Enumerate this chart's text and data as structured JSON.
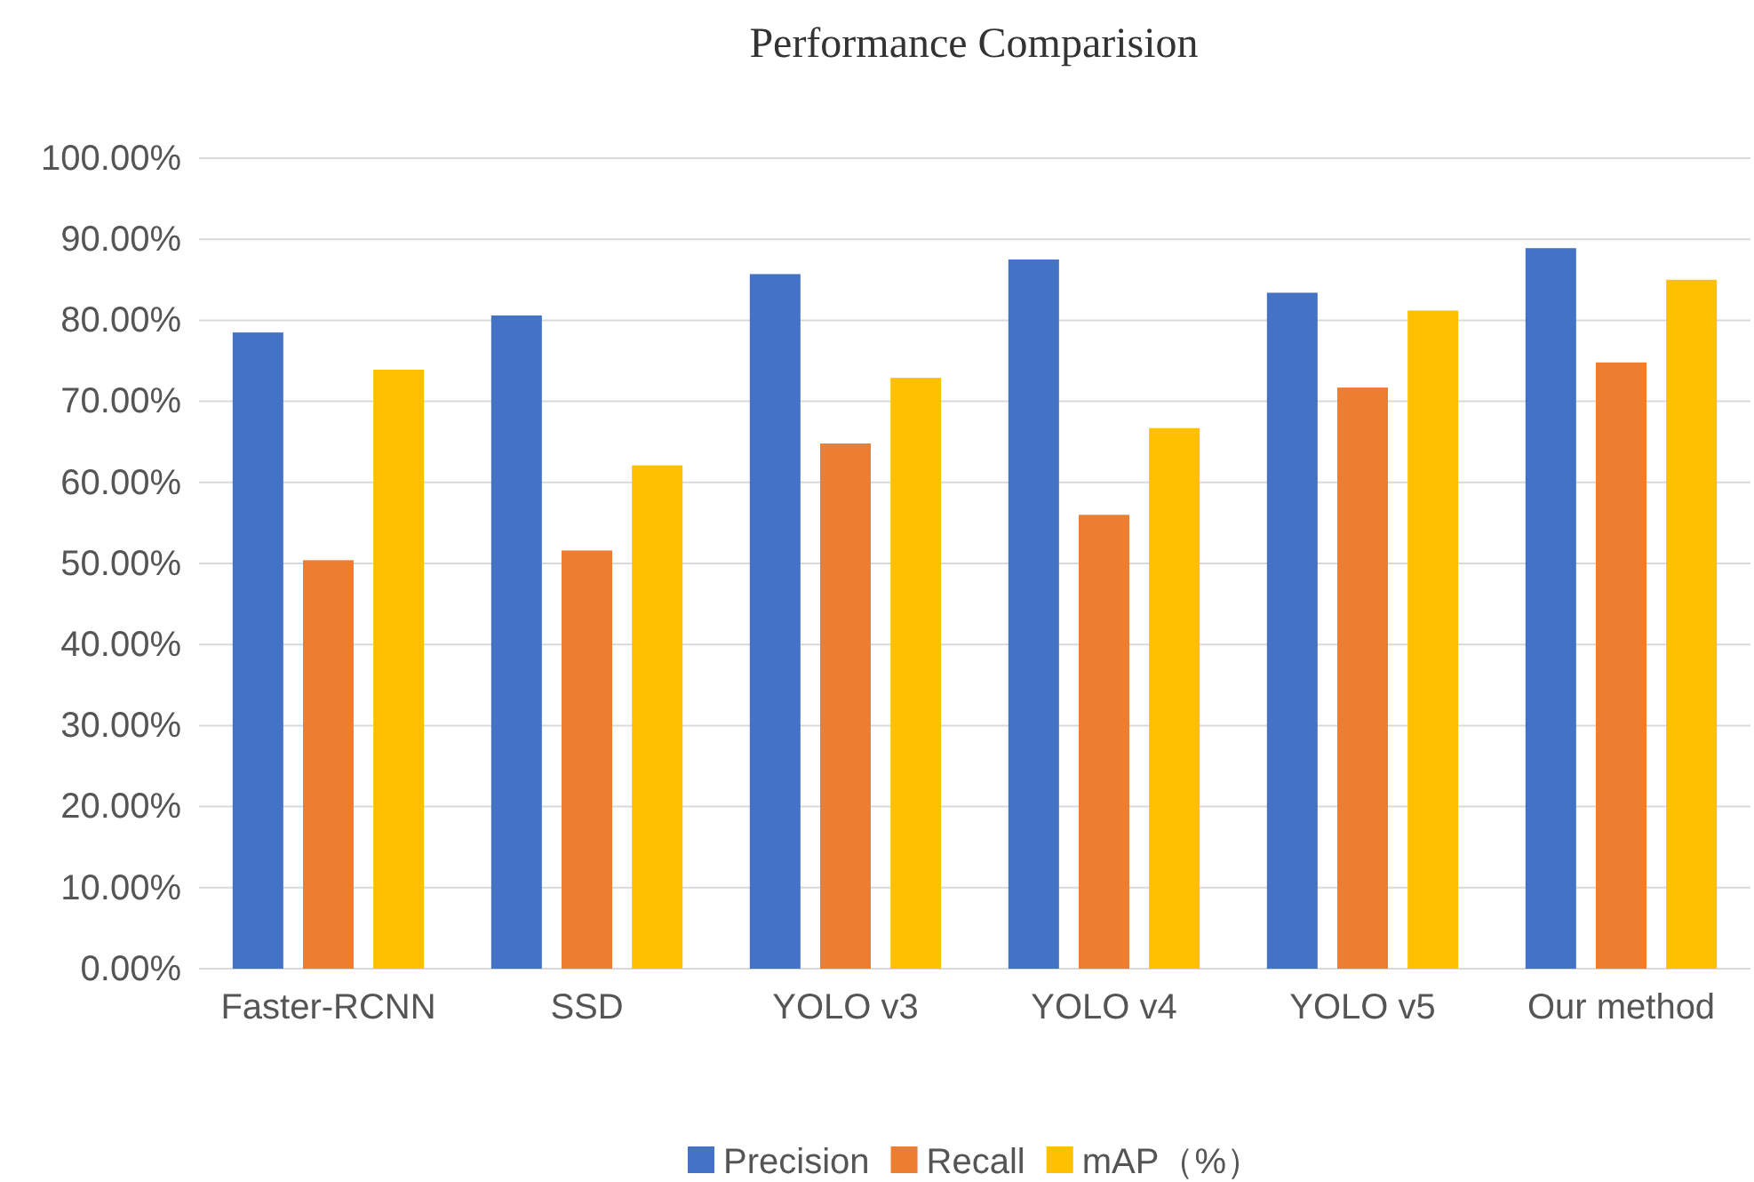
{
  "chart_data": {
    "type": "bar",
    "title": "Performance Comparision",
    "categories": [
      "Faster-RCNN",
      "SSD",
      "YOLO v3",
      "YOLO v4",
      "YOLO v5",
      "Our method"
    ],
    "series": [
      {
        "name": "Precision",
        "color": "#4472c4",
        "values": [
          78.5,
          80.6,
          85.7,
          87.5,
          83.4,
          88.9
        ]
      },
      {
        "name": "Recall",
        "color": "#ed7d31",
        "values": [
          50.4,
          51.6,
          64.8,
          56.0,
          71.7,
          74.8
        ]
      },
      {
        "name": "mAP（%）",
        "color": "#ffc000",
        "values": [
          73.9,
          62.1,
          72.9,
          66.7,
          81.2,
          85.0
        ]
      }
    ],
    "ylim": [
      0,
      100
    ],
    "yticks": [
      {
        "value": 0,
        "label": "0.00%"
      },
      {
        "value": 10,
        "label": "10.00%"
      },
      {
        "value": 20,
        "label": "20.00%"
      },
      {
        "value": 30,
        "label": "30.00%"
      },
      {
        "value": 40,
        "label": "40.00%"
      },
      {
        "value": 50,
        "label": "50.00%"
      },
      {
        "value": 60,
        "label": "60.00%"
      },
      {
        "value": 70,
        "label": "70.00%"
      },
      {
        "value": 80,
        "label": "80.00%"
      },
      {
        "value": 90,
        "label": "90.00%"
      },
      {
        "value": 100,
        "label": "100.00%"
      }
    ],
    "grid": "y",
    "legend": "bottom"
  }
}
